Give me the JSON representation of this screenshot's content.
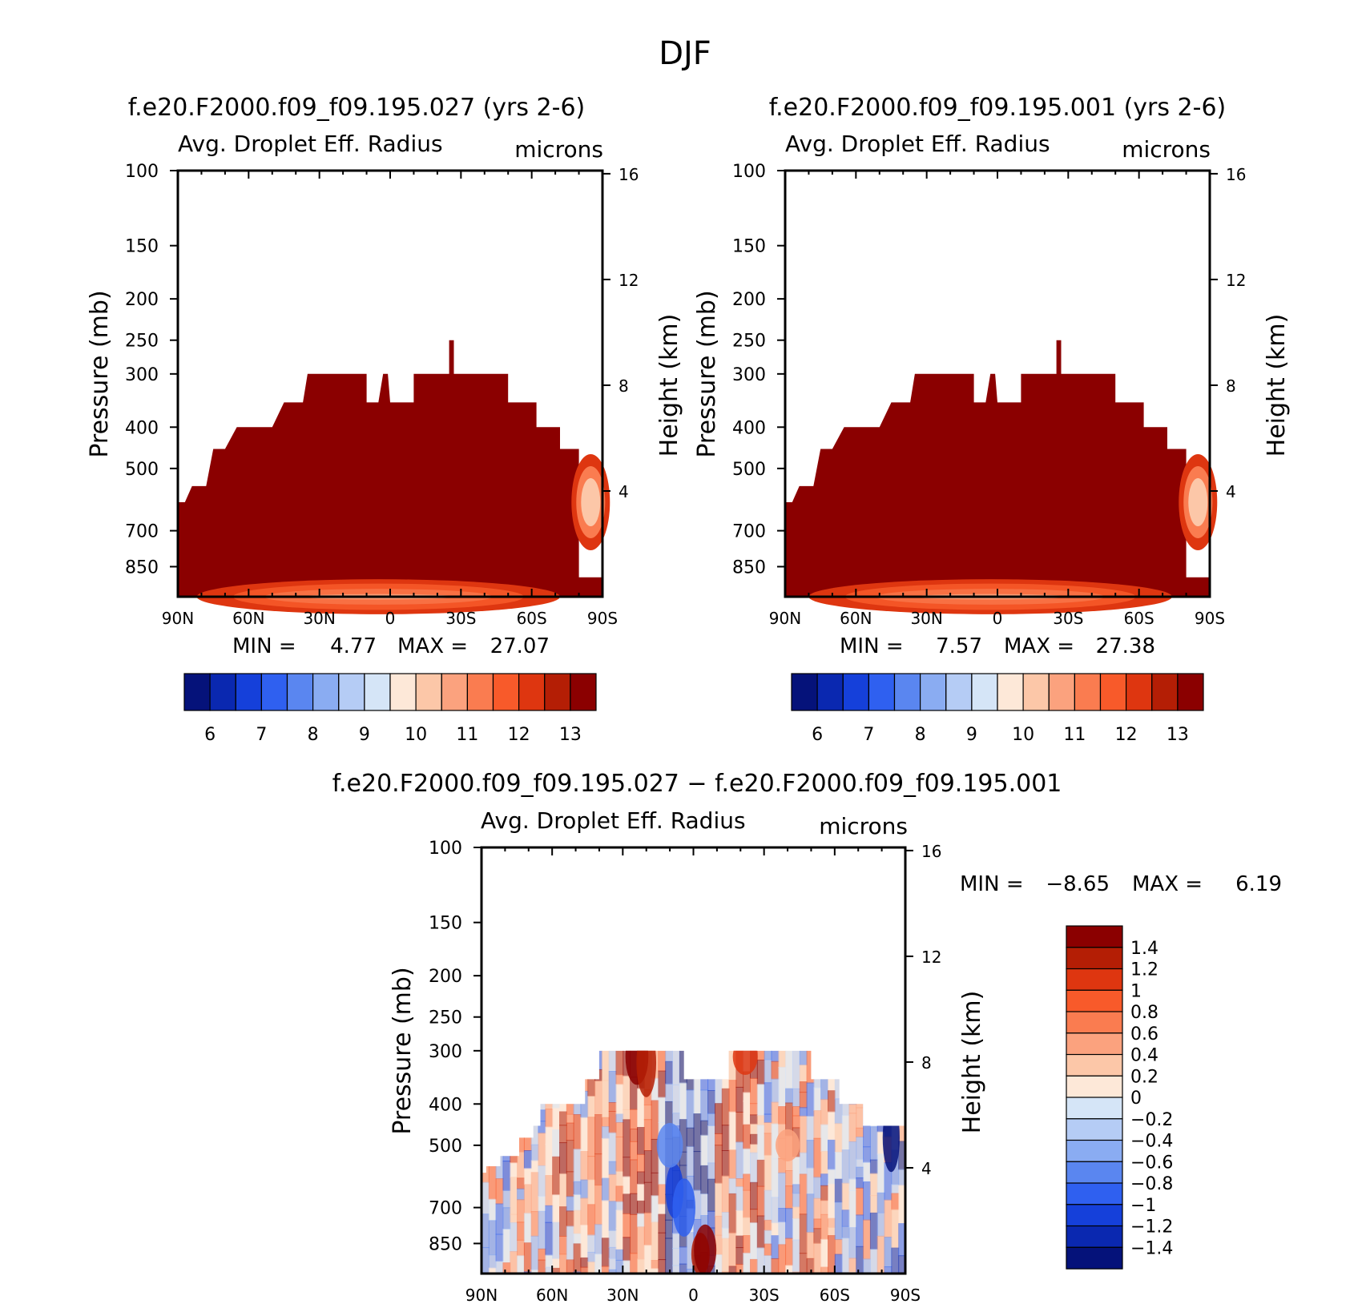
{
  "figure_title": "DJF",
  "colors": {
    "dark_red": "#8b0000",
    "scale_pos": [
      "#fde8d8",
      "#fcc7a8",
      "#fba27e",
      "#fa7c50",
      "#f85a2a",
      "#de3610",
      "#b41e05",
      "#8b0000"
    ],
    "scale_neg": [
      "#d5e5f7",
      "#b5ccf5",
      "#8aacf2",
      "#5a86f0",
      "#2f60f0",
      "#1540da",
      "#0a28b0",
      "#05127a"
    ]
  },
  "chart_data": [
    {
      "type": "contour",
      "title": "f.e20.F2000.f09_f09.195.027 (yrs 2-6)",
      "subtitle_left": "Avg. Droplet Eff. Radius",
      "subtitle_right": "microns",
      "xlabel": "",
      "ylabel_left": "Pressure (mb)",
      "ylabel_right": "Height (km)",
      "x_ticks": [
        "90N",
        "60N",
        "30N",
        "0",
        "30S",
        "60S",
        "90S"
      ],
      "y_ticks": [
        "100",
        "150",
        "200",
        "250",
        "300",
        "400",
        "500",
        "700",
        "850"
      ],
      "y_right_ticks": [
        "16",
        "12",
        "8",
        "4"
      ],
      "ylim_mb": [
        1000,
        100
      ],
      "stats": {
        "min_label": "MIN =",
        "min": "4.77",
        "max_label": "MAX =",
        "max": "27.07"
      },
      "colorbar_labels": [
        "6",
        "7",
        "8",
        "9",
        "10",
        "11",
        "12",
        "13"
      ]
    },
    {
      "type": "contour",
      "title": "f.e20.F2000.f09_f09.195.001 (yrs 2-6)",
      "subtitle_left": "Avg. Droplet Eff. Radius",
      "subtitle_right": "microns",
      "xlabel": "",
      "ylabel_left": "Pressure (mb)",
      "ylabel_right": "Height (km)",
      "x_ticks": [
        "90N",
        "60N",
        "30N",
        "0",
        "30S",
        "60S",
        "90S"
      ],
      "y_ticks": [
        "100",
        "150",
        "200",
        "250",
        "300",
        "400",
        "500",
        "700",
        "850"
      ],
      "y_right_ticks": [
        "16",
        "12",
        "8",
        "4"
      ],
      "ylim_mb": [
        1000,
        100
      ],
      "stats": {
        "min_label": "MIN =",
        "min": "7.57",
        "max_label": "MAX =",
        "max": "27.38"
      },
      "colorbar_labels": [
        "6",
        "7",
        "8",
        "9",
        "10",
        "11",
        "12",
        "13"
      ]
    },
    {
      "type": "contour",
      "title": "f.e20.F2000.f09_f09.195.027 − f.e20.F2000.f09_f09.195.001",
      "subtitle_left": "Avg. Droplet Eff. Radius",
      "subtitle_right": "microns",
      "xlabel": "",
      "ylabel_left": "Pressure (mb)",
      "ylabel_right": "Height (km)",
      "x_ticks": [
        "90N",
        "60N",
        "30N",
        "0",
        "30S",
        "60S",
        "90S"
      ],
      "y_ticks": [
        "100",
        "150",
        "200",
        "250",
        "300",
        "400",
        "500",
        "700",
        "850"
      ],
      "y_right_ticks": [
        "16",
        "12",
        "8",
        "4"
      ],
      "ylim_mb": [
        1000,
        100
      ],
      "stats": {
        "min_label": "MIN =",
        "min": "−8.65",
        "max_label": "MAX =",
        "max": "6.19"
      },
      "colorbar_labels": [
        "1.4",
        "1.2",
        "1",
        "0.8",
        "0.6",
        "0.4",
        "0.2",
        "0",
        "−0.2",
        "−0.4",
        "−0.6",
        "−0.8",
        "−1",
        "−1.2",
        "−1.4"
      ]
    }
  ]
}
